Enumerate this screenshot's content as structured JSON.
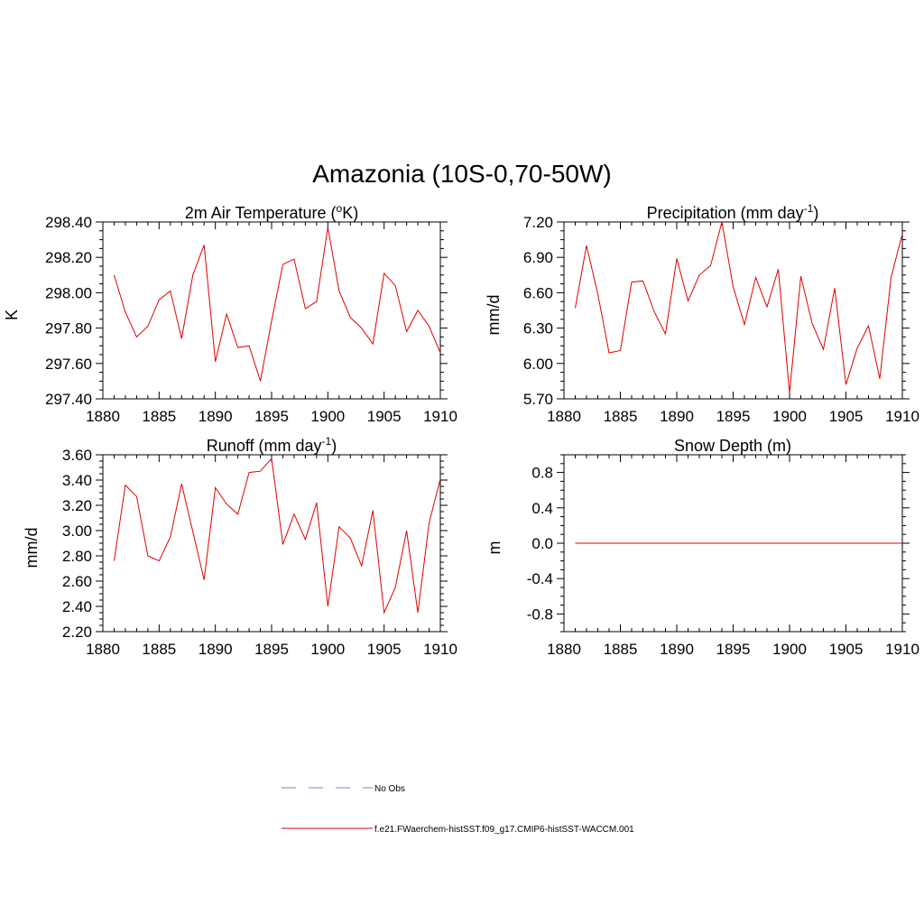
{
  "figure": {
    "title": "Amazonia (10S-0,70-50W)"
  },
  "colors": {
    "model_line": "#e00000",
    "obs_line": "#9999dd",
    "axis": "#000000"
  },
  "chart_data": [
    {
      "type": "line",
      "title_main": "2m Air Temperature (",
      "title_sup": "o",
      "title_end": "K)",
      "ylabel": "K",
      "xlim": [
        1880,
        1910
      ],
      "ylim": [
        297.4,
        298.4
      ],
      "yticks": [
        "297.40",
        "297.60",
        "297.80",
        "298.00",
        "298.20",
        "298.40"
      ],
      "xticks": [
        "1880",
        "1885",
        "1890",
        "1895",
        "1900",
        "1905",
        "1910"
      ],
      "series": [
        {
          "x": [
            1881,
            1882,
            1883,
            1884,
            1885,
            1886,
            1887,
            1888,
            1889,
            1890,
            1891,
            1892,
            1893,
            1894,
            1895,
            1896,
            1897,
            1898,
            1899,
            1900,
            1901,
            1902,
            1903,
            1904,
            1905,
            1906,
            1907,
            1908,
            1909,
            1910
          ],
          "y": [
            298.1,
            297.89,
            297.75,
            297.81,
            297.96,
            298.01,
            297.74,
            298.1,
            298.27,
            297.61,
            297.88,
            297.69,
            297.7,
            297.5,
            297.84,
            298.16,
            298.19,
            297.91,
            297.95,
            298.37,
            298.01,
            297.86,
            297.8,
            297.71,
            298.11,
            298.04,
            297.78,
            297.9,
            297.81,
            297.66
          ]
        }
      ]
    },
    {
      "type": "line",
      "title_main": "Precipitation (mm day",
      "title_sup": "-1",
      "title_end": ")",
      "ylabel": "mm/d",
      "xlim": [
        1880,
        1910
      ],
      "ylim": [
        5.7,
        7.2
      ],
      "yticks": [
        "5.70",
        "6.00",
        "6.30",
        "6.60",
        "6.90",
        "7.20"
      ],
      "xticks": [
        "1880",
        "1885",
        "1890",
        "1895",
        "1900",
        "1905",
        "1910"
      ],
      "series": [
        {
          "x": [
            1881,
            1882,
            1883,
            1884,
            1885,
            1886,
            1887,
            1888,
            1889,
            1890,
            1891,
            1892,
            1893,
            1894,
            1895,
            1896,
            1897,
            1898,
            1899,
            1900,
            1901,
            1902,
            1903,
            1904,
            1905,
            1906,
            1907,
            1908,
            1909,
            1910
          ],
          "y": [
            6.47,
            7.0,
            6.59,
            6.09,
            6.11,
            6.69,
            6.7,
            6.44,
            6.25,
            6.89,
            6.53,
            6.75,
            6.83,
            7.2,
            6.65,
            6.33,
            6.73,
            6.48,
            6.8,
            5.75,
            6.74,
            6.34,
            6.12,
            6.64,
            5.82,
            6.13,
            6.32,
            5.87,
            6.73,
            7.1
          ]
        }
      ]
    },
    {
      "type": "line",
      "title_main": "Runoff (mm day",
      "title_sup": "-1",
      "title_end": ")",
      "ylabel": "mm/d",
      "xlim": [
        1880,
        1910
      ],
      "ylim": [
        2.2,
        3.6
      ],
      "yticks": [
        "2.20",
        "2.40",
        "2.60",
        "2.80",
        "3.00",
        "3.20",
        "3.40",
        "3.60"
      ],
      "xticks": [
        "1880",
        "1885",
        "1890",
        "1895",
        "1900",
        "1905",
        "1910"
      ],
      "series": [
        {
          "x": [
            1881,
            1882,
            1883,
            1884,
            1885,
            1886,
            1887,
            1888,
            1889,
            1890,
            1891,
            1892,
            1893,
            1894,
            1895,
            1896,
            1897,
            1898,
            1899,
            1900,
            1901,
            1902,
            1903,
            1904,
            1905,
            1906,
            1907,
            1908,
            1909,
            1910
          ],
          "y": [
            2.76,
            3.36,
            3.27,
            2.8,
            2.76,
            2.95,
            3.37,
            2.99,
            2.61,
            3.34,
            3.21,
            3.13,
            3.46,
            3.47,
            3.57,
            2.89,
            3.13,
            2.93,
            3.22,
            2.4,
            3.03,
            2.94,
            2.72,
            3.16,
            2.35,
            2.55,
            3.0,
            2.35,
            3.06,
            3.41
          ]
        }
      ]
    },
    {
      "type": "line",
      "title_main": "Snow Depth (m)",
      "title_sup": "",
      "title_end": "",
      "ylabel": "m",
      "xlim": [
        1880,
        1910
      ],
      "ylim": [
        -1.0,
        1.0
      ],
      "yticks": [
        "-0.8",
        "-0.4",
        "0.0",
        "0.4",
        "0.8"
      ],
      "yticks_vals": [
        -0.8,
        -0.4,
        0.0,
        0.4,
        0.8
      ],
      "xticks": [
        "1880",
        "1885",
        "1890",
        "1895",
        "1900",
        "1905",
        "1910"
      ],
      "series": [
        {
          "x": [
            1881,
            1910
          ],
          "y": [
            0.0,
            0.0
          ]
        }
      ]
    }
  ],
  "legend": {
    "position": "bottom-center",
    "items": [
      {
        "label": "No Obs",
        "style": "dashed"
      },
      {
        "label": "f.e21.FWaerchem-histSST.f09_g17.CMIP6-histSST-WACCM.001",
        "style": "solid"
      }
    ]
  }
}
